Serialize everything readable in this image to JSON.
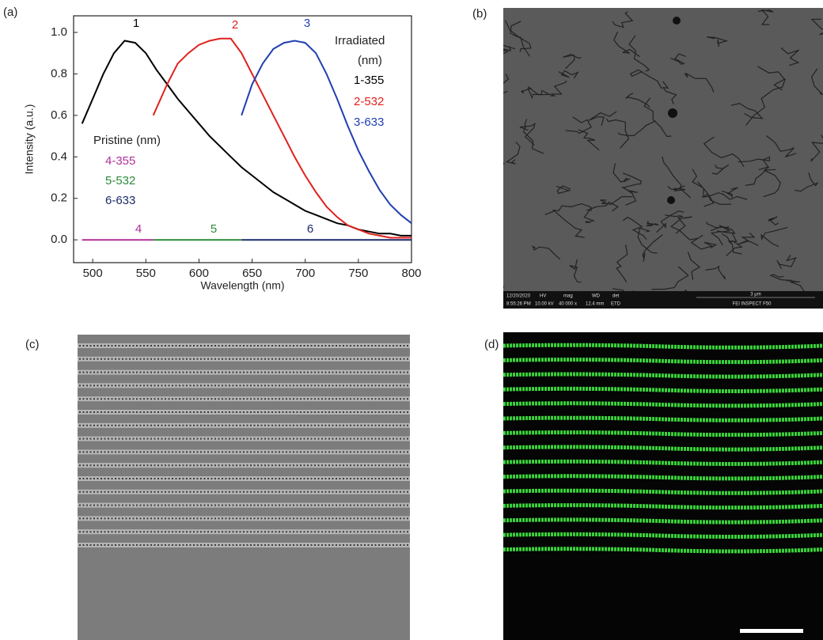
{
  "panel_labels": [
    "(a)",
    "(b)",
    "(c)",
    "(d)"
  ],
  "sem_footer": [
    "12/20/2020",
    "8:55:26 PM",
    "HV",
    "10.00 kV",
    "mag",
    "40 000 x",
    "WD",
    "12.4 mm",
    "det",
    "ETD",
    "3 μm",
    "FEI INSPECT F50"
  ],
  "chart_data": {
    "type": "line",
    "x_label": "Wavelength (nm)",
    "y_label": "Intensity (a.u.)",
    "xlim": [
      482,
      800
    ],
    "xticks": [
      500,
      550,
      600,
      650,
      700,
      750,
      800
    ],
    "ylim": [
      -0.11,
      1.08
    ],
    "yticks": [
      {
        "value": 0,
        "label": "0.0"
      },
      0.2,
      0.4,
      0.6,
      0.8,
      {
        "value": 1,
        "label": "1.0"
      }
    ],
    "legend_titles": {
      "irradiated": [
        "Irradiated",
        "(nm)"
      ],
      "pristine": "Pristine (nm)"
    },
    "series": [
      {
        "name": "1-355",
        "label": "1",
        "color": "#000000",
        "x": [
          490,
          500,
          510,
          520,
          530,
          540,
          550,
          560,
          570,
          580,
          590,
          600,
          610,
          620,
          630,
          640,
          650,
          660,
          670,
          680,
          690,
          700,
          710,
          720,
          730,
          740,
          750,
          760,
          770,
          780,
          790,
          800
        ],
        "values": [
          0.56,
          0.68,
          0.8,
          0.9,
          0.96,
          0.95,
          0.9,
          0.82,
          0.75,
          0.68,
          0.62,
          0.56,
          0.5,
          0.45,
          0.4,
          0.35,
          0.31,
          0.27,
          0.23,
          0.2,
          0.17,
          0.14,
          0.12,
          0.1,
          0.08,
          0.07,
          0.05,
          0.04,
          0.03,
          0.03,
          0.02,
          0.02
        ]
      },
      {
        "name": "2-532",
        "label": "2",
        "color": "#e0201c",
        "x": [
          557,
          570,
          580,
          590,
          600,
          610,
          620,
          630,
          640,
          650,
          660,
          670,
          680,
          690,
          700,
          710,
          720,
          730,
          740,
          750,
          760,
          770,
          780,
          790,
          800
        ],
        "values": [
          0.6,
          0.75,
          0.85,
          0.9,
          0.94,
          0.96,
          0.97,
          0.97,
          0.9,
          0.8,
          0.7,
          0.6,
          0.5,
          0.4,
          0.31,
          0.23,
          0.16,
          0.11,
          0.07,
          0.05,
          0.03,
          0.02,
          0.01,
          0.01,
          0.01
        ]
      },
      {
        "name": "3-633",
        "label": "3",
        "color": "#1f3fb0",
        "x": [
          640,
          650,
          660,
          670,
          680,
          690,
          700,
          710,
          720,
          730,
          740,
          750,
          760,
          770,
          780,
          790,
          800
        ],
        "values": [
          0.6,
          0.75,
          0.85,
          0.92,
          0.95,
          0.96,
          0.95,
          0.9,
          0.8,
          0.68,
          0.55,
          0.43,
          0.33,
          0.24,
          0.17,
          0.12,
          0.08
        ]
      },
      {
        "name": "4-355",
        "label": "4",
        "color": "#b0309a",
        "x": [
          490,
          557
        ],
        "values": [
          0,
          0
        ]
      },
      {
        "name": "5-532",
        "label": "5",
        "color": "#2a8a3a",
        "x": [
          557,
          640
        ],
        "values": [
          0,
          0
        ]
      },
      {
        "name": "6-633",
        "label": "6",
        "color": "#1c2a6a",
        "x": [
          640,
          800
        ],
        "values": [
          0,
          0
        ]
      }
    ]
  }
}
